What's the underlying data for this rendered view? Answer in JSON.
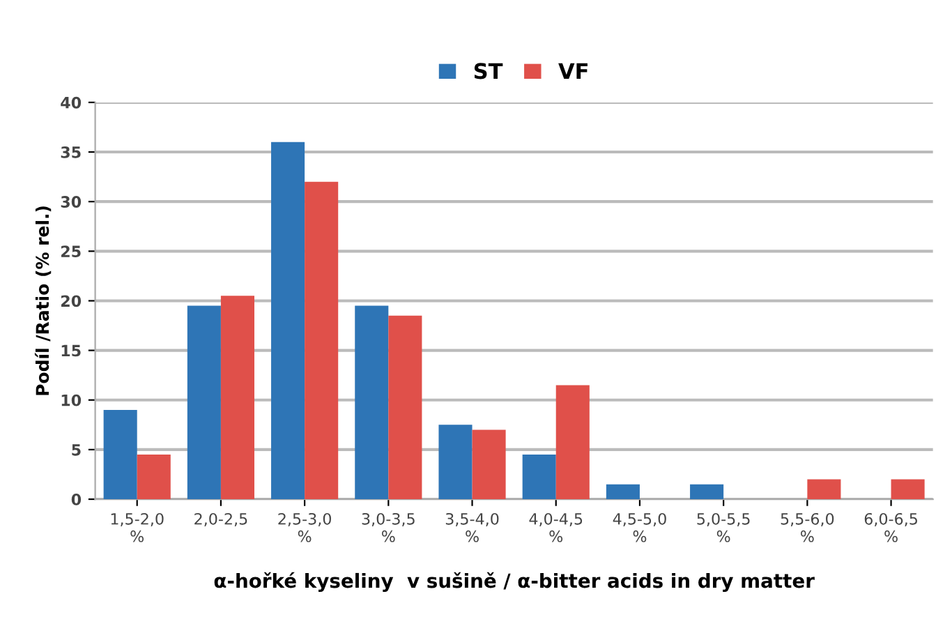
{
  "chart_data": {
    "type": "bar",
    "categories": [
      "1,5-2,0\n%",
      "2,0-2,5",
      "2,5-3,0\n%",
      "3,0-3,5\n%",
      "3,5-4,0\n%",
      "4,0-4,5\n%",
      "4,5-5,0\n%",
      "5,0-5,5\n%",
      "5,5-6,0\n%",
      "6,0-6,5\n%"
    ],
    "series": [
      {
        "name": "ST",
        "color": "#2e75b6",
        "values": [
          9,
          19.5,
          36,
          19.5,
          7.5,
          4.5,
          1.5,
          1.5,
          0,
          0
        ]
      },
      {
        "name": "VF",
        "color": "#e0504a",
        "values": [
          4.5,
          20.5,
          32,
          18.5,
          7,
          11.5,
          0,
          0,
          2,
          2
        ]
      }
    ],
    "xlabel": "α-hořké kyseliny  v sušině / α-bitter acids in dry matter",
    "ylabel": "Podíl /Ratio (% rel.)",
    "ylim": [
      0,
      40
    ],
    "yticks": [
      0,
      5,
      10,
      15,
      20,
      25,
      30,
      35,
      40
    ],
    "grid": "y",
    "legend": "top"
  }
}
